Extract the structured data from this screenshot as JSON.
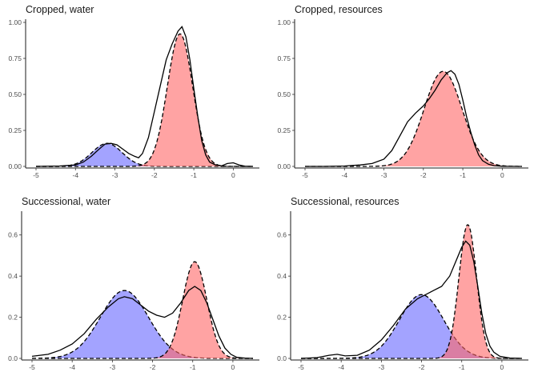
{
  "chart_data": [
    {
      "type": "area",
      "title": "Cropped, water",
      "xlabel": "",
      "ylabel": "",
      "xlim": [
        -5,
        0.5
      ],
      "ylim": [
        0,
        1
      ],
      "xticks": [
        -5,
        -4,
        -3,
        -2,
        -1,
        0
      ],
      "yticks": [
        0.0,
        0.25,
        0.5,
        0.75,
        1.0
      ],
      "ytick_labels": [
        "0.00",
        "0.25",
        "0.50",
        "0.75",
        "1.00"
      ],
      "grid": false,
      "components": [
        {
          "color": "#6666FF",
          "mean": -3.2,
          "sd": 0.38,
          "peak": 0.16
        },
        {
          "color": "#FF6666",
          "mean": -1.35,
          "sd": 0.32,
          "peak": 0.92
        }
      ],
      "observed_density": [
        [
          -5.0,
          0.0
        ],
        [
          -4.4,
          0.003
        ],
        [
          -4.0,
          0.01
        ],
        [
          -3.8,
          0.03
        ],
        [
          -3.6,
          0.07
        ],
        [
          -3.4,
          0.12
        ],
        [
          -3.25,
          0.155
        ],
        [
          -3.1,
          0.16
        ],
        [
          -2.95,
          0.15
        ],
        [
          -2.8,
          0.12
        ],
        [
          -2.65,
          0.09
        ],
        [
          -2.5,
          0.07
        ],
        [
          -2.4,
          0.06
        ],
        [
          -2.3,
          0.09
        ],
        [
          -2.15,
          0.2
        ],
        [
          -2.0,
          0.38
        ],
        [
          -1.85,
          0.56
        ],
        [
          -1.7,
          0.74
        ],
        [
          -1.55,
          0.85
        ],
        [
          -1.4,
          0.94
        ],
        [
          -1.3,
          0.97
        ],
        [
          -1.2,
          0.9
        ],
        [
          -1.1,
          0.74
        ],
        [
          -1.0,
          0.54
        ],
        [
          -0.9,
          0.35
        ],
        [
          -0.8,
          0.18
        ],
        [
          -0.7,
          0.08
        ],
        [
          -0.6,
          0.03
        ],
        [
          -0.45,
          0.01
        ],
        [
          -0.3,
          0.004
        ],
        [
          -0.15,
          0.02
        ],
        [
          0.0,
          0.025
        ],
        [
          0.15,
          0.01
        ],
        [
          0.3,
          0.001
        ],
        [
          0.5,
          0.0
        ]
      ]
    },
    {
      "type": "area",
      "title": "Cropped, resources",
      "xlabel": "",
      "ylabel": "",
      "xlim": [
        -5,
        0.5
      ],
      "ylim": [
        0,
        1
      ],
      "xticks": [
        -5,
        -4,
        -3,
        -2,
        -1,
        0
      ],
      "yticks": [
        0.0,
        0.25,
        0.5,
        0.75,
        1.0
      ],
      "ytick_labels": [
        "0.00",
        "0.25",
        "0.50",
        "0.75",
        "1.00"
      ],
      "grid": false,
      "components": [
        {
          "color": "#FF6666",
          "mean": -1.5,
          "sd": 0.48,
          "peak": 0.66
        }
      ],
      "observed_density": [
        [
          -5.0,
          0.0
        ],
        [
          -4.5,
          0.0
        ],
        [
          -4.0,
          0.003
        ],
        [
          -3.6,
          0.01
        ],
        [
          -3.3,
          0.02
        ],
        [
          -3.0,
          0.05
        ],
        [
          -2.8,
          0.11
        ],
        [
          -2.6,
          0.21
        ],
        [
          -2.4,
          0.31
        ],
        [
          -2.2,
          0.37
        ],
        [
          -2.0,
          0.42
        ],
        [
          -1.85,
          0.47
        ],
        [
          -1.7,
          0.53
        ],
        [
          -1.55,
          0.6
        ],
        [
          -1.4,
          0.65
        ],
        [
          -1.3,
          0.665
        ],
        [
          -1.2,
          0.64
        ],
        [
          -1.1,
          0.57
        ],
        [
          -1.0,
          0.46
        ],
        [
          -0.9,
          0.34
        ],
        [
          -0.8,
          0.24
        ],
        [
          -0.7,
          0.15
        ],
        [
          -0.6,
          0.08
        ],
        [
          -0.5,
          0.04
        ],
        [
          -0.35,
          0.015
        ],
        [
          -0.2,
          0.005
        ],
        [
          0.0,
          0.001
        ],
        [
          0.5,
          0.0
        ]
      ]
    },
    {
      "type": "area",
      "title": "Successional, water",
      "xlabel": "",
      "ylabel": "",
      "xlim": [
        -5,
        0.5
      ],
      "ylim": [
        0,
        0.7
      ],
      "xticks": [
        -5,
        -4,
        -3,
        -2,
        -1,
        0
      ],
      "yticks": [
        0.0,
        0.2,
        0.4,
        0.6
      ],
      "ytick_labels": [
        "0.0",
        "0.2",
        "0.4",
        "0.6"
      ],
      "grid": false,
      "components": [
        {
          "color": "#6666FF",
          "mean": -2.7,
          "sd": 0.6,
          "peak": 0.33
        },
        {
          "color": "#FF6666",
          "mean": -0.95,
          "sd": 0.3,
          "peak": 0.47
        }
      ],
      "observed_density": [
        [
          -5.0,
          0.01
        ],
        [
          -4.6,
          0.02
        ],
        [
          -4.3,
          0.04
        ],
        [
          -4.0,
          0.07
        ],
        [
          -3.7,
          0.12
        ],
        [
          -3.4,
          0.19
        ],
        [
          -3.1,
          0.25
        ],
        [
          -2.85,
          0.29
        ],
        [
          -2.7,
          0.3
        ],
        [
          -2.5,
          0.29
        ],
        [
          -2.3,
          0.26
        ],
        [
          -2.1,
          0.23
        ],
        [
          -1.9,
          0.21
        ],
        [
          -1.7,
          0.2
        ],
        [
          -1.5,
          0.22
        ],
        [
          -1.3,
          0.27
        ],
        [
          -1.1,
          0.33
        ],
        [
          -0.95,
          0.35
        ],
        [
          -0.8,
          0.33
        ],
        [
          -0.65,
          0.27
        ],
        [
          -0.5,
          0.19
        ],
        [
          -0.35,
          0.11
        ],
        [
          -0.2,
          0.05
        ],
        [
          -0.05,
          0.02
        ],
        [
          0.1,
          0.005
        ],
        [
          0.3,
          0.001
        ],
        [
          0.5,
          0.0
        ]
      ]
    },
    {
      "type": "area",
      "title": "Successional, resources",
      "xlabel": "",
      "ylabel": "",
      "xlim": [
        -5,
        0.5
      ],
      "ylim": [
        0,
        0.7
      ],
      "xticks": [
        -5,
        -4,
        -3,
        -2,
        -1,
        0
      ],
      "yticks": [
        0.0,
        0.2,
        0.4,
        0.6
      ],
      "ytick_labels": [
        "0.0",
        "0.2",
        "0.4",
        "0.6"
      ],
      "grid": false,
      "components": [
        {
          "color": "#6666FF",
          "mean": -2.0,
          "sd": 0.55,
          "peak": 0.31
        },
        {
          "color": "#FF6666",
          "mean": -0.85,
          "sd": 0.22,
          "peak": 0.65
        }
      ],
      "observed_density": [
        [
          -5.0,
          0.0
        ],
        [
          -4.6,
          0.004
        ],
        [
          -4.3,
          0.015
        ],
        [
          -4.1,
          0.02
        ],
        [
          -3.9,
          0.012
        ],
        [
          -3.6,
          0.015
        ],
        [
          -3.3,
          0.04
        ],
        [
          -3.0,
          0.09
        ],
        [
          -2.7,
          0.16
        ],
        [
          -2.4,
          0.24
        ],
        [
          -2.1,
          0.29
        ],
        [
          -1.9,
          0.31
        ],
        [
          -1.7,
          0.33
        ],
        [
          -1.5,
          0.35
        ],
        [
          -1.3,
          0.4
        ],
        [
          -1.15,
          0.47
        ],
        [
          -1.0,
          0.54
        ],
        [
          -0.9,
          0.57
        ],
        [
          -0.8,
          0.55
        ],
        [
          -0.7,
          0.47
        ],
        [
          -0.6,
          0.35
        ],
        [
          -0.5,
          0.22
        ],
        [
          -0.4,
          0.12
        ],
        [
          -0.3,
          0.06
        ],
        [
          -0.2,
          0.03
        ],
        [
          -0.05,
          0.01
        ],
        [
          0.2,
          0.002
        ],
        [
          0.5,
          0.0
        ]
      ]
    }
  ]
}
